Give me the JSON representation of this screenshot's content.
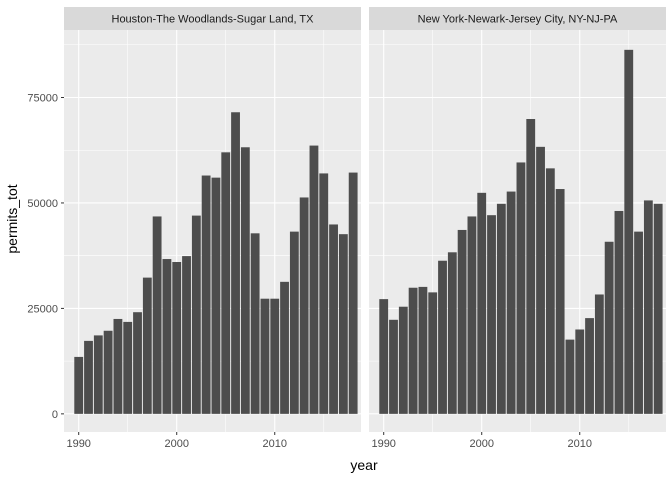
{
  "chart_data": {
    "type": "bar",
    "xlabel": "year",
    "ylabel": "permits_tot",
    "xlim": [
      1988.5,
      2018.8
    ],
    "ylim": [
      -4300,
      91000
    ],
    "x_ticks": [
      1990,
      2000,
      2010
    ],
    "y_ticks": [
      0,
      25000,
      50000,
      75000
    ],
    "y_tick_labels": [
      "0",
      "25000",
      "50000",
      "75000"
    ],
    "grid": true,
    "colors": {
      "panel_bg": "#ebebeb",
      "strip_bg": "#d9d9d9",
      "grid_major": "#ffffff",
      "bar": "#4d4d4d",
      "tick": "#333333"
    },
    "panels": [
      {
        "title": "Houston-The Woodlands-Sugar Land, TX",
        "x": [
          1990,
          1991,
          1992,
          1993,
          1994,
          1995,
          1996,
          1997,
          1998,
          1999,
          2000,
          2001,
          2002,
          2003,
          2004,
          2005,
          2006,
          2007,
          2008,
          2009,
          2010,
          2011,
          2012,
          2013,
          2014,
          2015,
          2016,
          2017,
          2018
        ],
        "values": [
          13500,
          17300,
          18600,
          19700,
          22500,
          21800,
          24100,
          32300,
          46800,
          36700,
          36000,
          37400,
          47000,
          56500,
          56000,
          62000,
          71500,
          63200,
          42800,
          27300,
          27300,
          31300,
          43200,
          51300,
          63600,
          57000,
          44900,
          42600,
          57200
        ]
      },
      {
        "title": "New York-Newark-Jersey City, NY-NJ-PA",
        "x": [
          1990,
          1991,
          1992,
          1993,
          1994,
          1995,
          1996,
          1997,
          1998,
          1999,
          2000,
          2001,
          2002,
          2003,
          2004,
          2005,
          2006,
          2007,
          2008,
          2009,
          2010,
          2011,
          2012,
          2013,
          2014,
          2015,
          2016,
          2017,
          2018
        ],
        "values": [
          27200,
          22300,
          25400,
          29900,
          30100,
          28800,
          36300,
          38300,
          43600,
          46800,
          52400,
          47100,
          49800,
          52700,
          59600,
          69900,
          63300,
          58200,
          53300,
          17600,
          20000,
          22700,
          28300,
          40800,
          48100,
          86300,
          43200,
          50600,
          49800
        ]
      }
    ]
  }
}
